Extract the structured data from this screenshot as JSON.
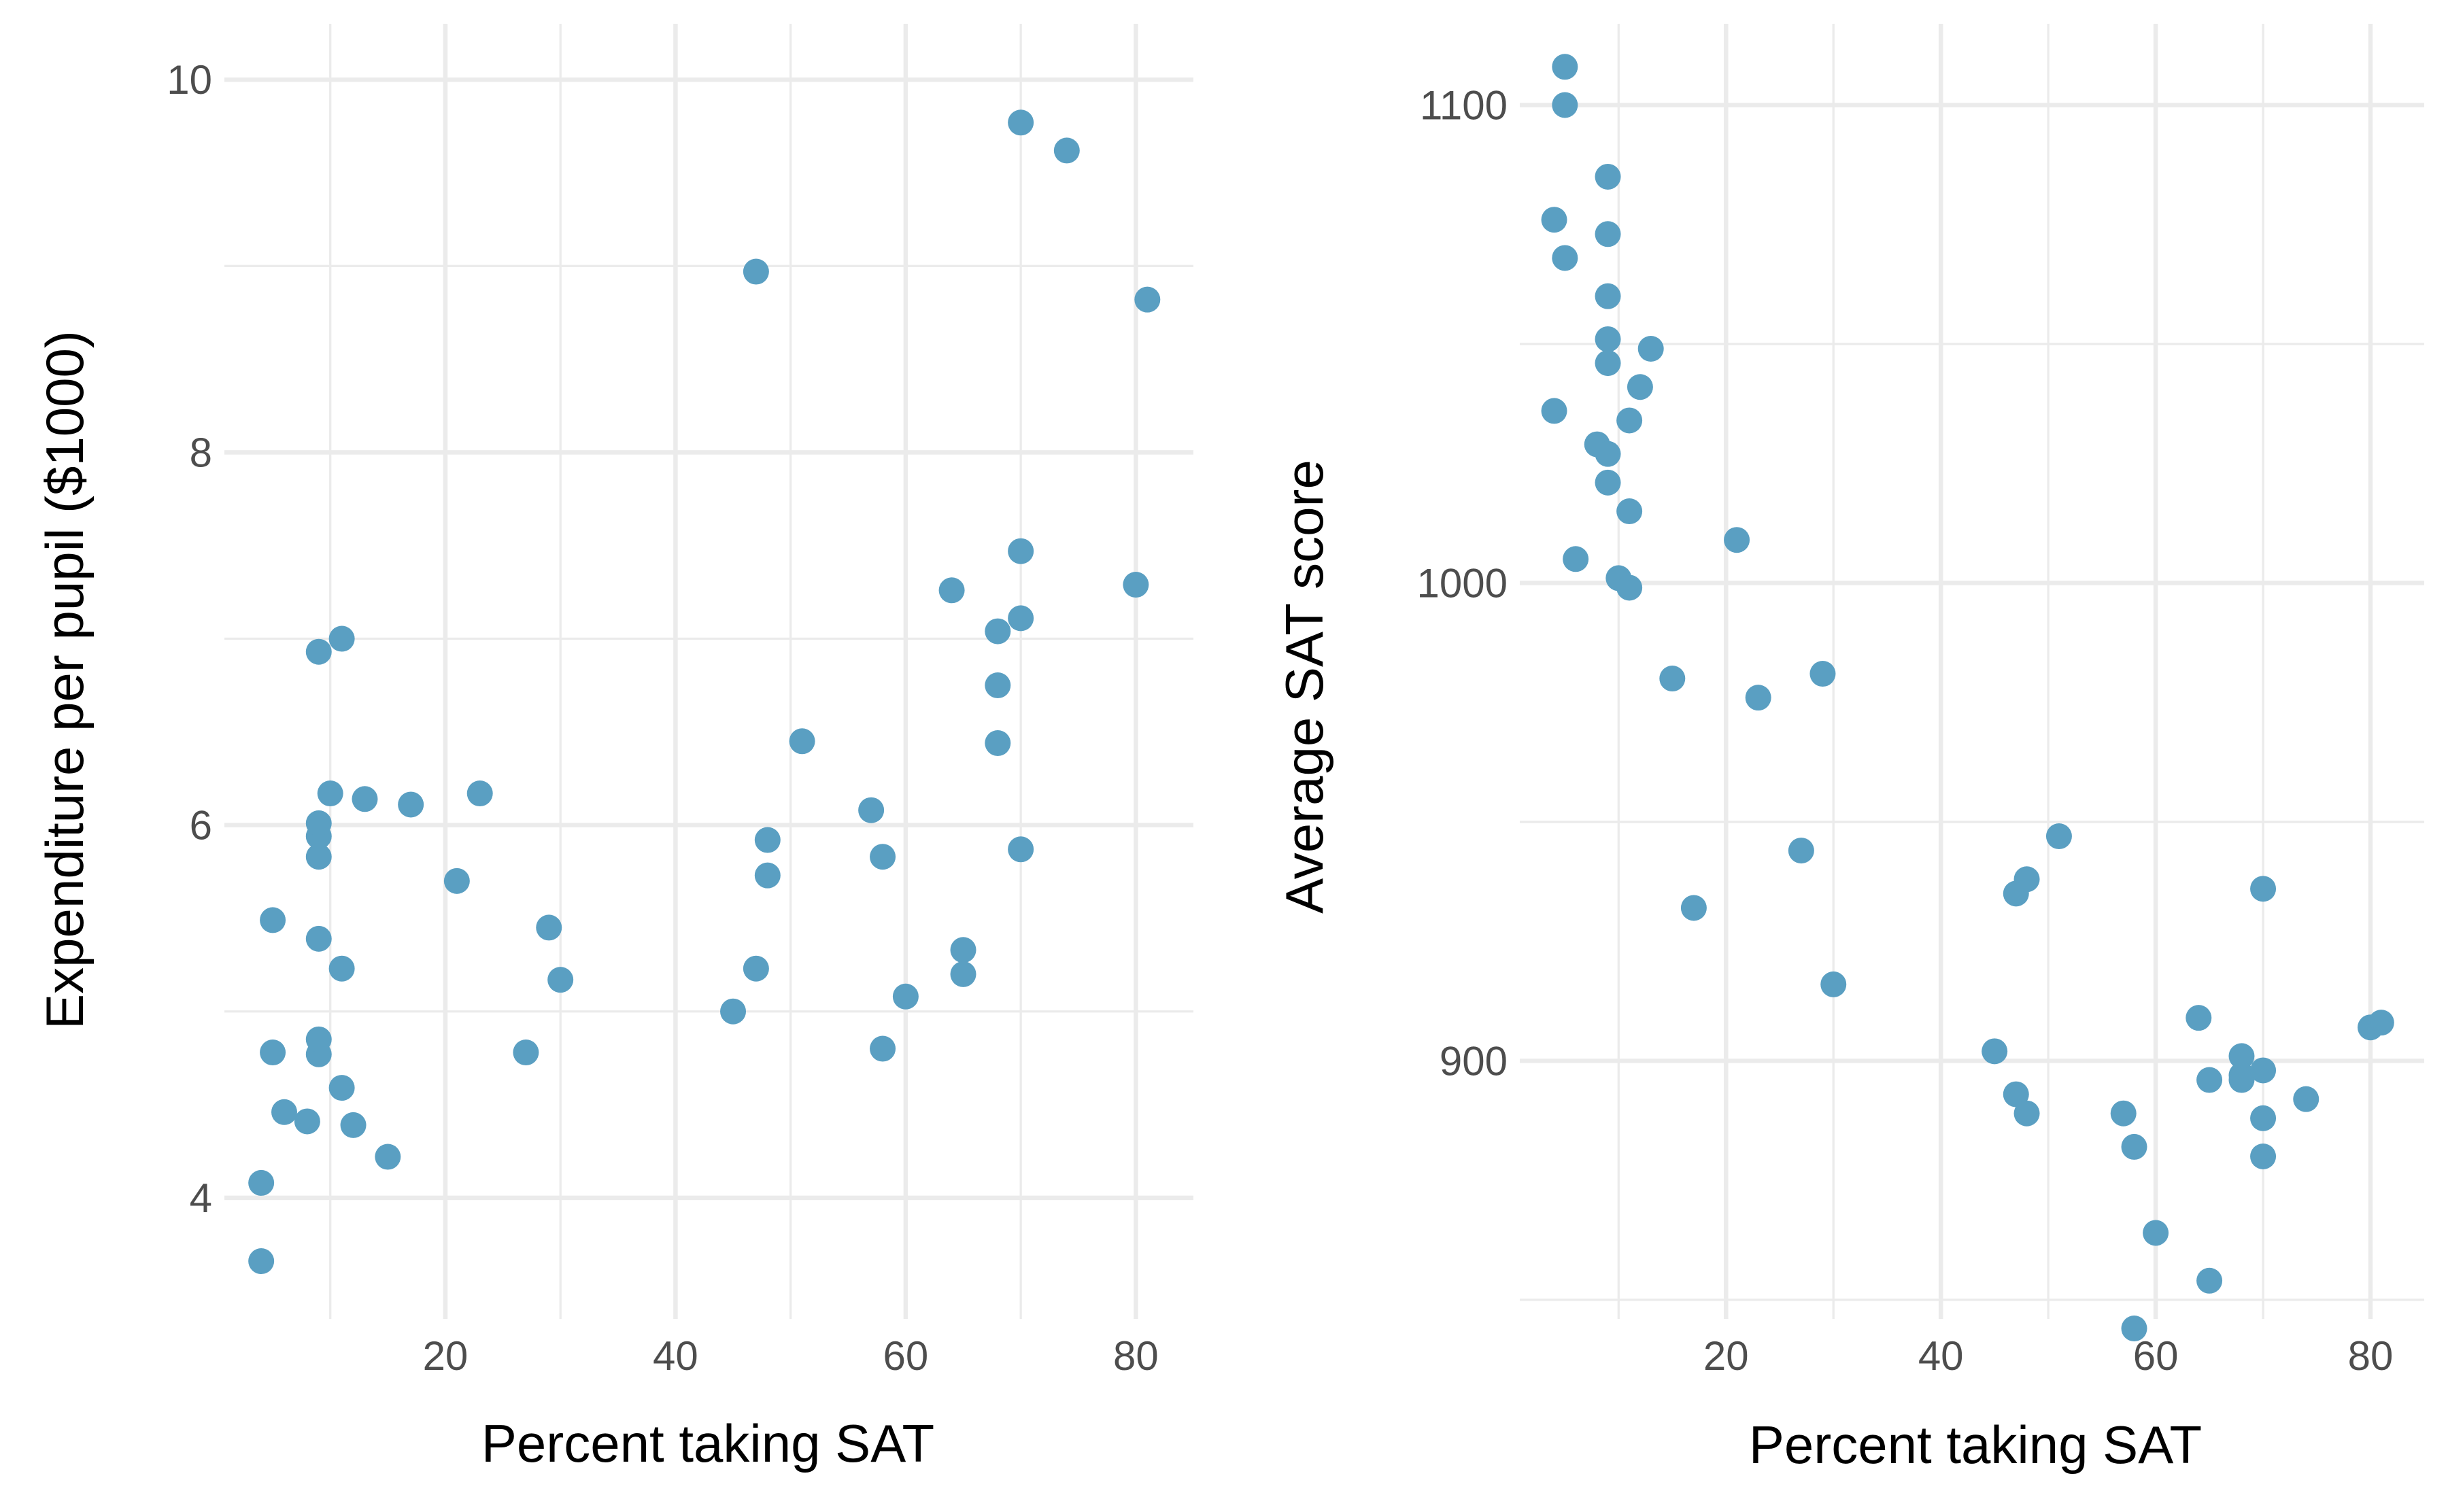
{
  "chart_data": [
    {
      "type": "scatter",
      "xlabel": "Percent taking SAT",
      "ylabel": "Expenditure per pupil ($1000)",
      "xlim": [
        0.8,
        85
      ],
      "ylim": [
        3.35,
        10.3
      ],
      "xticks": [
        20,
        40,
        60,
        80
      ],
      "yticks": [
        4,
        6,
        8,
        10
      ],
      "xminor": [
        10,
        30,
        50,
        70
      ],
      "yminor": [
        5,
        7,
        9
      ],
      "grid": true,
      "point_color": "#5a9fc2",
      "points": [
        [
          4,
          3.66
        ],
        [
          4,
          4.08
        ],
        [
          5,
          4.78
        ],
        [
          5,
          5.49
        ],
        [
          6,
          4.46
        ],
        [
          8,
          4.41
        ],
        [
          9,
          4.77
        ],
        [
          9,
          4.85
        ],
        [
          9,
          5.39
        ],
        [
          9,
          5.83
        ],
        [
          9,
          5.94
        ],
        [
          9,
          6.01
        ],
        [
          9,
          6.93
        ],
        [
          10,
          6.17
        ],
        [
          11,
          7.0
        ],
        [
          11,
          5.23
        ],
        [
          11,
          4.59
        ],
        [
          12,
          4.39
        ],
        [
          13,
          6.14
        ],
        [
          15,
          4.22
        ],
        [
          17,
          6.11
        ],
        [
          21,
          5.7
        ],
        [
          23,
          6.17
        ],
        [
          27,
          4.78
        ],
        [
          29,
          5.45
        ],
        [
          30,
          5.17
        ],
        [
          45,
          5.0
        ],
        [
          47,
          8.97
        ],
        [
          47,
          5.23
        ],
        [
          48,
          5.92
        ],
        [
          48,
          5.73
        ],
        [
          51,
          6.45
        ],
        [
          57,
          6.08
        ],
        [
          58,
          5.83
        ],
        [
          58,
          4.8
        ],
        [
          60,
          5.08
        ],
        [
          64,
          7.26
        ],
        [
          65,
          5.33
        ],
        [
          65,
          5.2
        ],
        [
          68,
          7.04
        ],
        [
          68,
          6.75
        ],
        [
          68,
          6.44
        ],
        [
          70,
          9.77
        ],
        [
          70,
          7.47
        ],
        [
          70,
          7.11
        ],
        [
          70,
          5.87
        ],
        [
          74,
          9.62
        ],
        [
          80,
          7.29
        ],
        [
          81,
          8.82
        ]
      ]
    },
    {
      "type": "scatter",
      "xlabel": "Percent taking SAT",
      "ylabel": "Average SAT score",
      "xlim": [
        0.8,
        85
      ],
      "ylim": [
        846,
        1117
      ],
      "xticks": [
        20,
        40,
        60,
        80
      ],
      "yticks": [
        900,
        1000,
        1100
      ],
      "xminor": [
        10,
        30,
        50,
        70
      ],
      "yminor": [
        850,
        950,
        1050
      ],
      "grid": true,
      "point_color": "#5a9fc2",
      "points": [
        [
          5,
          1108
        ],
        [
          5,
          1100
        ],
        [
          4,
          1076
        ],
        [
          5,
          1068
        ],
        [
          4,
          1036
        ],
        [
          6,
          1005
        ],
        [
          9,
          1085
        ],
        [
          9,
          1073
        ],
        [
          9,
          1060
        ],
        [
          9,
          1051
        ],
        [
          9,
          1046
        ],
        [
          8,
          1029
        ],
        [
          9,
          1027
        ],
        [
          9,
          1021
        ],
        [
          10,
          1001
        ],
        [
          11,
          1034
        ],
        [
          11,
          1015
        ],
        [
          11,
          999
        ],
        [
          12,
          1041
        ],
        [
          13,
          1049
        ],
        [
          15,
          980
        ],
        [
          17,
          932
        ],
        [
          21,
          1009
        ],
        [
          23,
          976
        ],
        [
          27,
          944
        ],
        [
          29,
          981
        ],
        [
          30,
          916
        ],
        [
          45,
          902
        ],
        [
          47,
          935
        ],
        [
          47,
          893
        ],
        [
          48,
          938
        ],
        [
          48,
          889
        ],
        [
          51,
          947
        ],
        [
          57,
          889
        ],
        [
          58,
          882
        ],
        [
          58,
          844
        ],
        [
          60,
          864
        ],
        [
          64,
          909
        ],
        [
          65,
          896
        ],
        [
          65,
          854
        ],
        [
          68,
          901
        ],
        [
          68,
          897
        ],
        [
          68,
          896
        ],
        [
          70,
          898
        ],
        [
          70,
          888
        ],
        [
          70,
          880
        ],
        [
          70,
          936
        ],
        [
          74,
          892
        ],
        [
          80,
          907
        ],
        [
          81,
          908
        ]
      ]
    }
  ]
}
